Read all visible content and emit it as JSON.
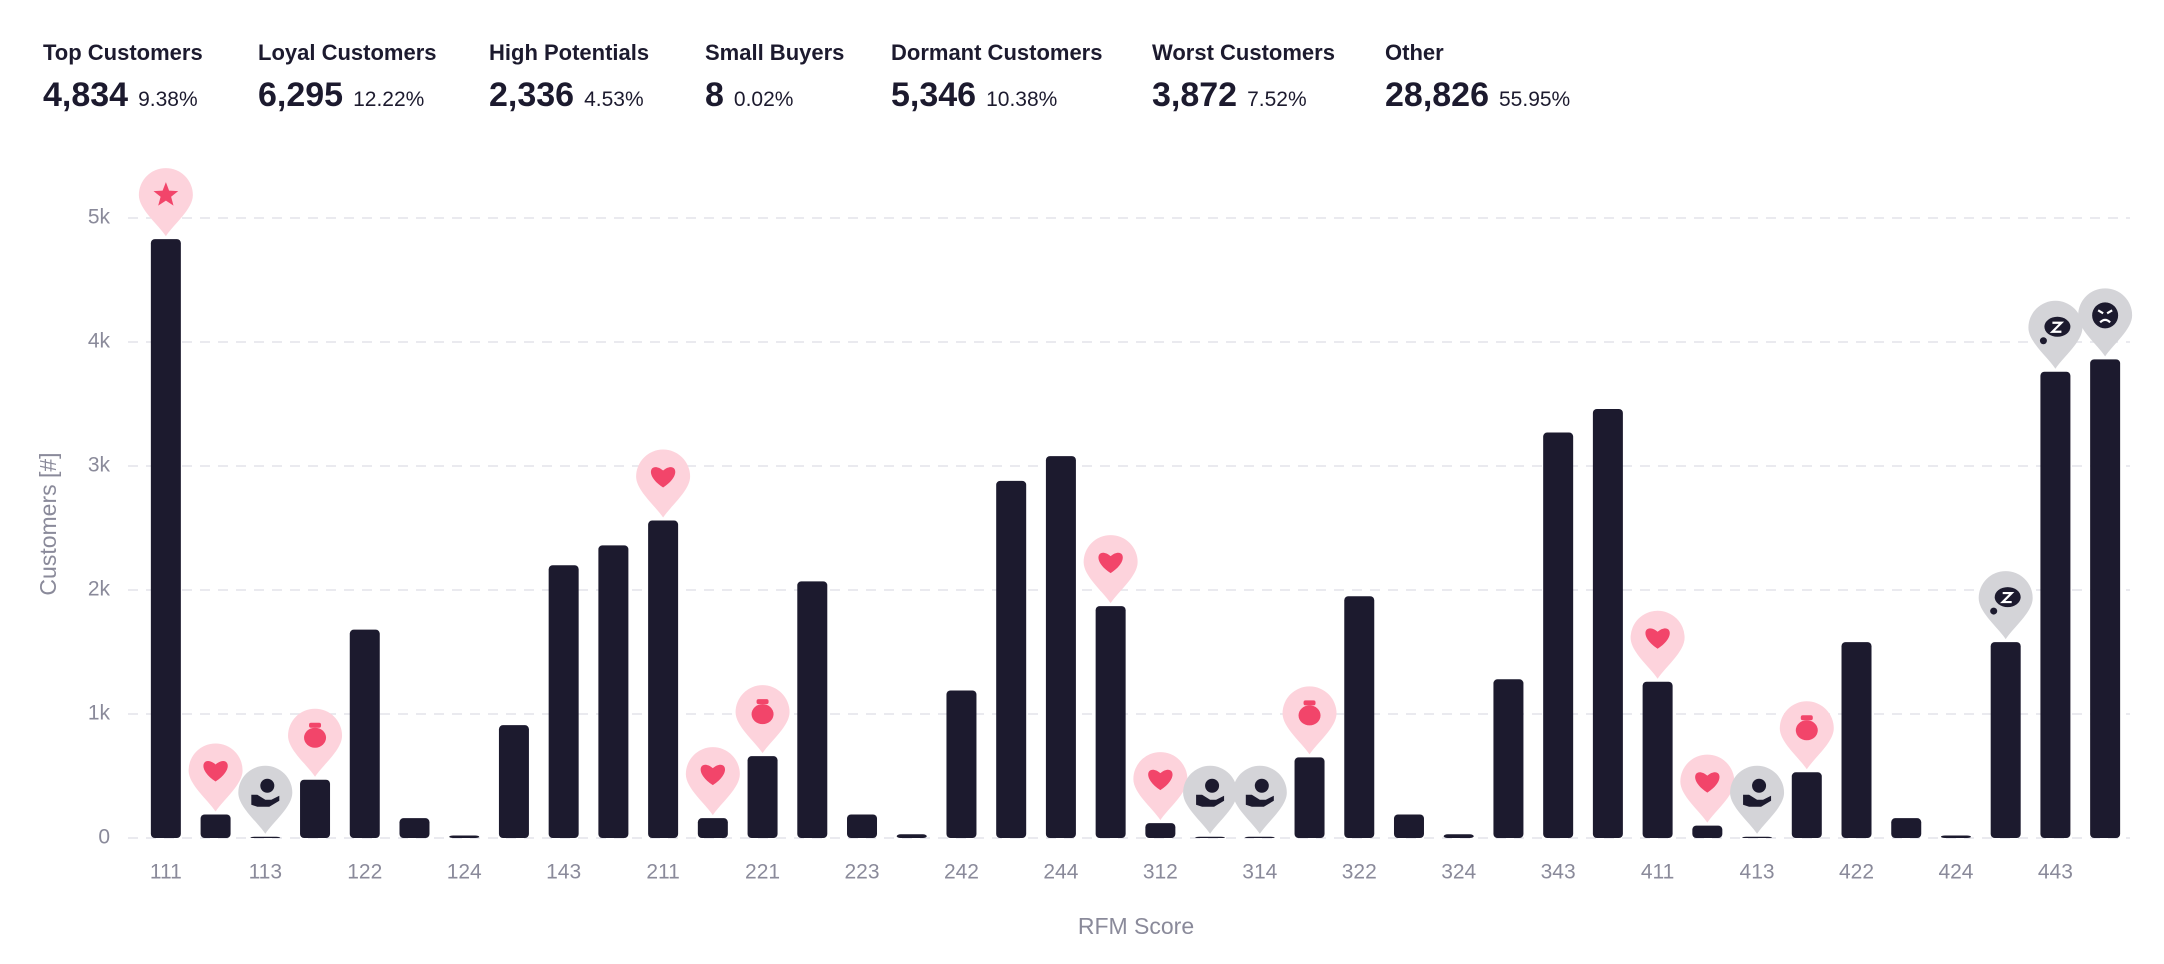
{
  "summary": [
    {
      "name": "Top Customers",
      "count": "4,834",
      "percent": "9.38%"
    },
    {
      "name": "Loyal Customers",
      "count": "6,295",
      "percent": "12.22%"
    },
    {
      "name": "High Potentials",
      "count": "2,336",
      "percent": "4.53%"
    },
    {
      "name": "Small Buyers",
      "count": "8",
      "percent": "0.02%"
    },
    {
      "name": "Dormant Customers",
      "count": "5,346",
      "percent": "10.38%"
    },
    {
      "name": "Worst Customers",
      "count": "3,872",
      "percent": "7.52%"
    },
    {
      "name": "Other",
      "count": "28,826",
      "percent": "55.95%"
    }
  ],
  "chart_data": {
    "type": "bar",
    "x_label": "RFM Score",
    "y_label": "Customers [#]",
    "categories": [
      "111",
      null,
      "113",
      null,
      "122",
      null,
      "124",
      null,
      "143",
      null,
      "211",
      null,
      "221",
      null,
      "223",
      null,
      "242",
      null,
      "244",
      null,
      "312",
      null,
      "314",
      null,
      "322",
      null,
      "324",
      null,
      "343",
      null,
      "411",
      null,
      "413",
      null,
      "422",
      null,
      "424",
      null,
      "443",
      null
    ],
    "values": [
      4830,
      190,
      10,
      470,
      1680,
      160,
      20,
      910,
      2200,
      2360,
      2560,
      160,
      660,
      2070,
      190,
      30,
      1190,
      2880,
      3080,
      1870,
      120,
      10,
      10,
      650,
      1950,
      190,
      30,
      1280,
      3270,
      3460,
      1260,
      100,
      10,
      530,
      1580,
      160,
      20,
      1580,
      3760,
      3860
    ],
    "color": "#1c1a2e",
    "ylim": [
      0,
      5000
    ],
    "yticks": [
      0,
      {
        "value": 1000,
        "label": "1k"
      },
      {
        "value": 2000,
        "label": "2k"
      },
      {
        "value": 3000,
        "label": "3k"
      },
      {
        "value": 4000,
        "label": "4k"
      },
      {
        "value": 5000,
        "label": "5k"
      }
    ],
    "grid": true
  }
}
